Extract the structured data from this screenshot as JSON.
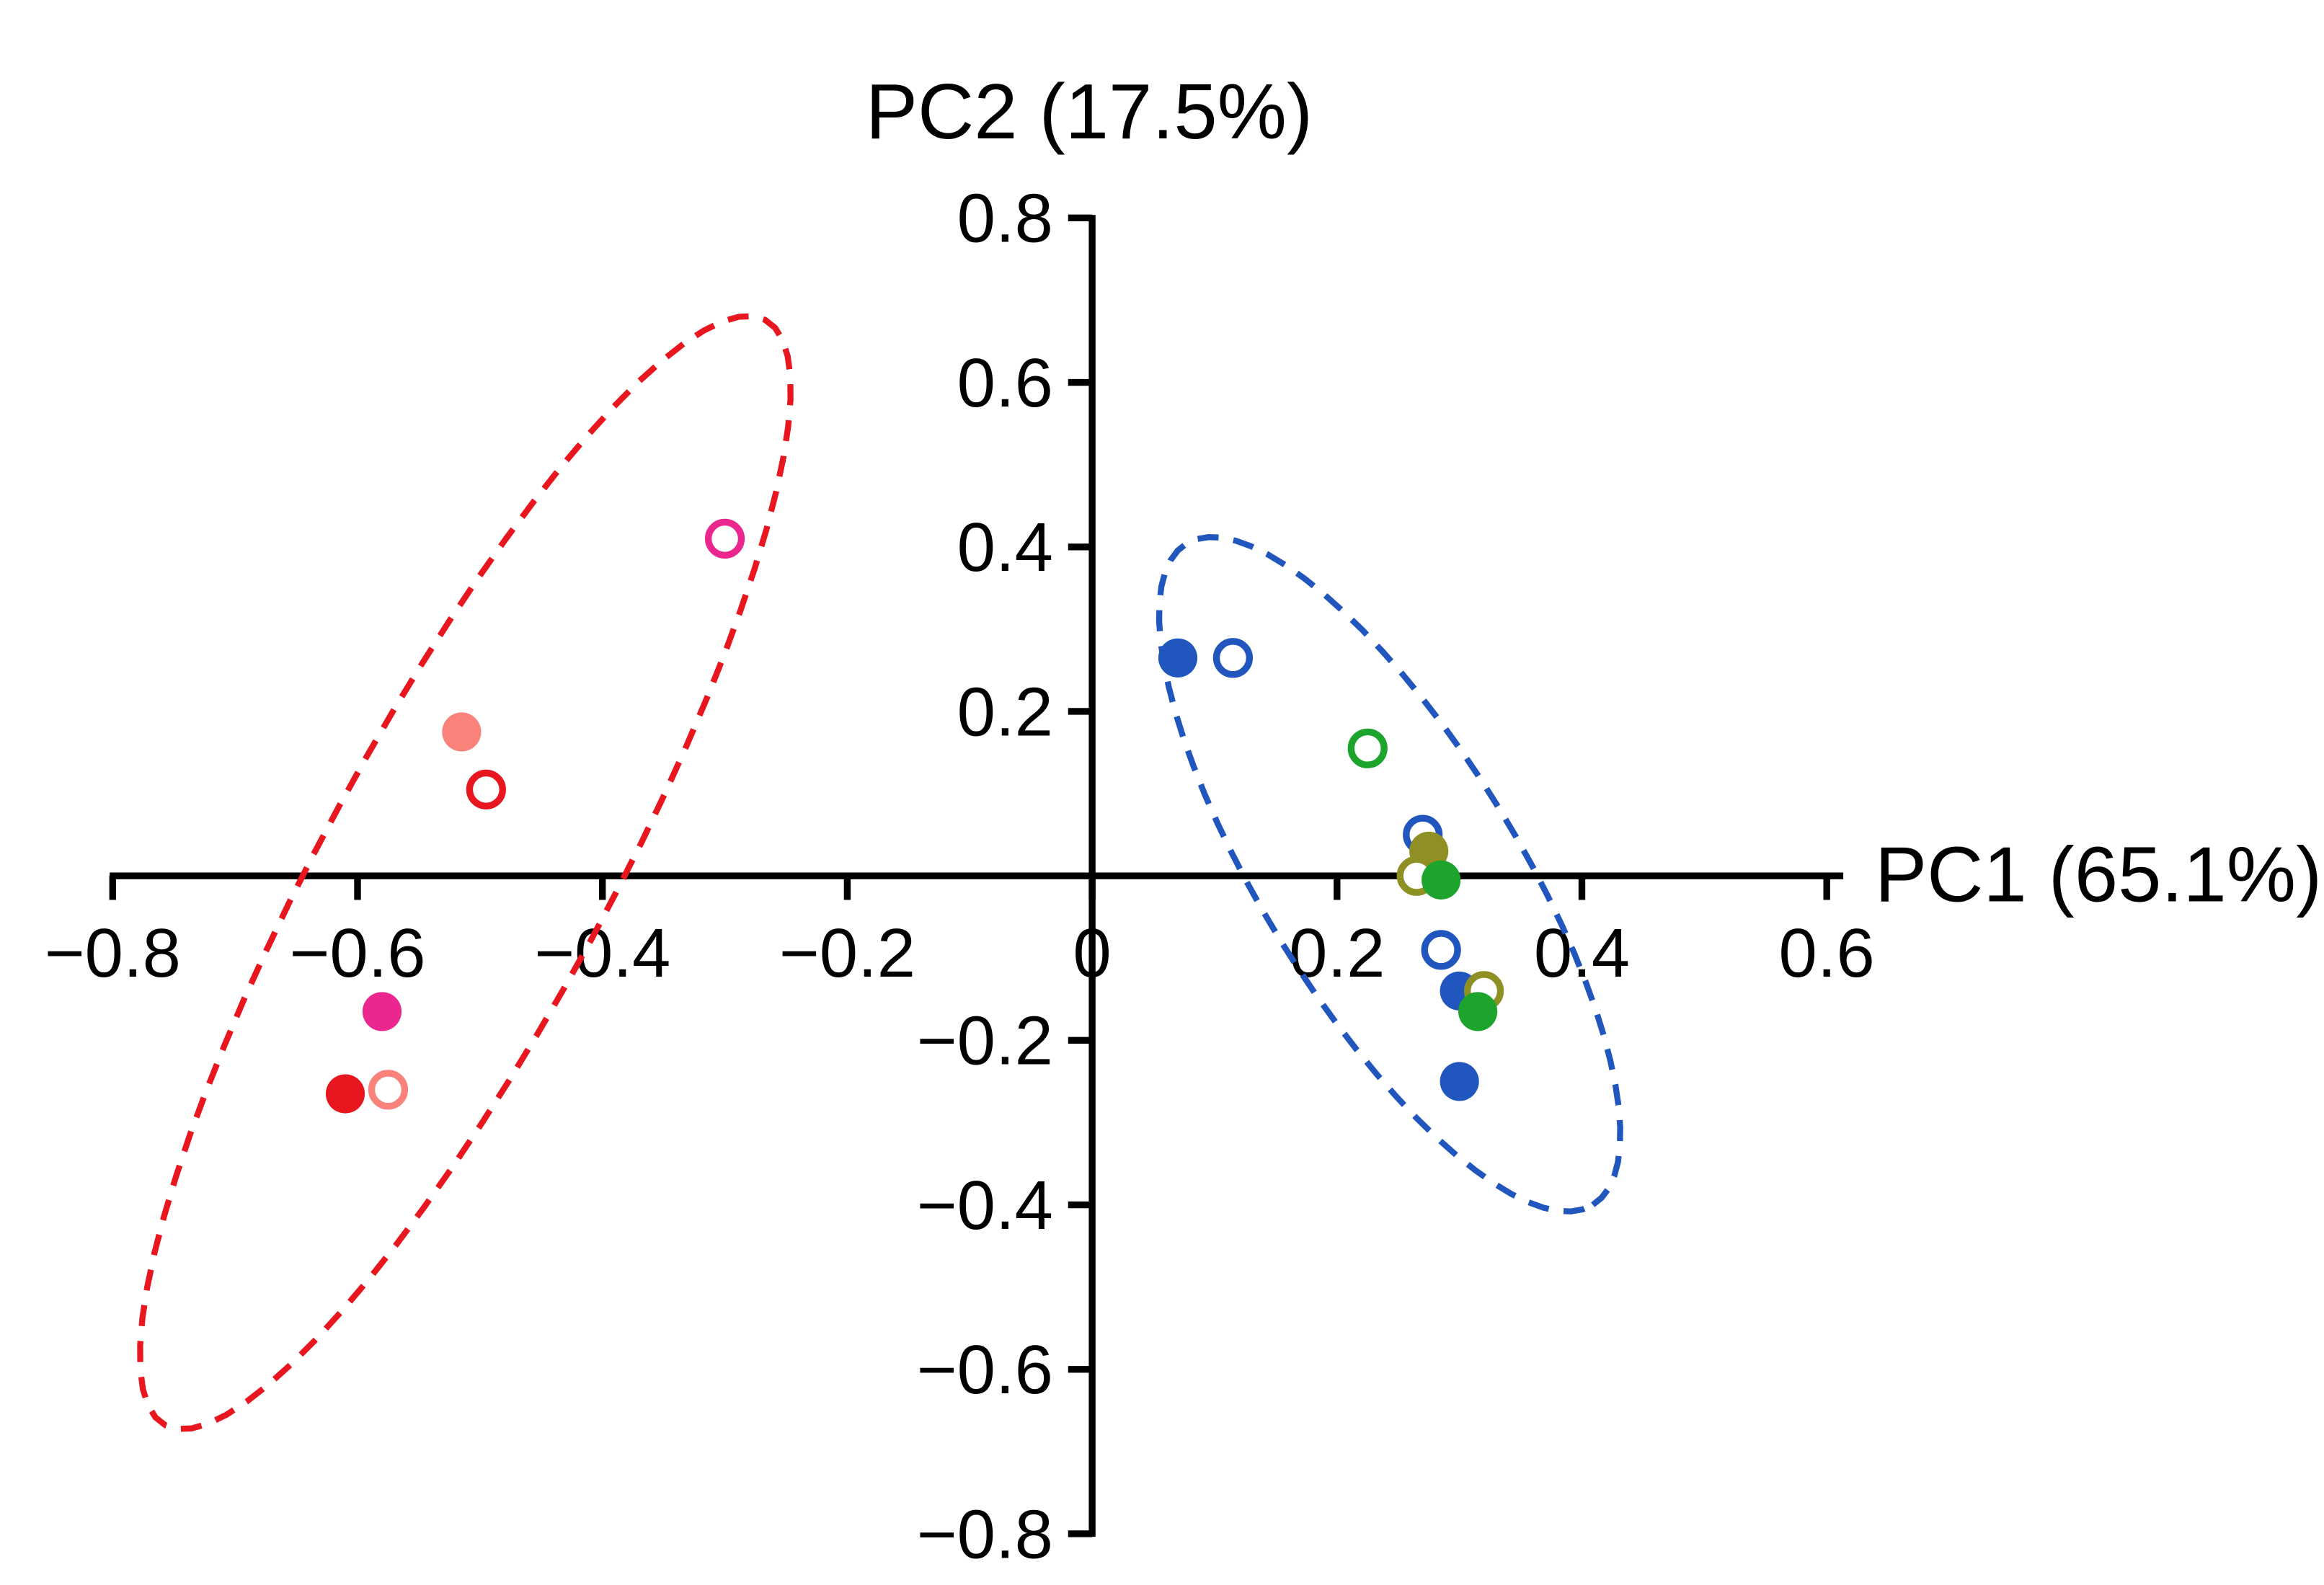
{
  "page": {
    "background": "#ffffff"
  },
  "chart_data": {
    "type": "scatter",
    "title": "",
    "xlabel": "PC1 (65.1%)",
    "ylabel": "PC2 (17.5%)",
    "xlim": [
      -0.8,
      0.6
    ],
    "ylim": [
      -0.8,
      0.8
    ],
    "grid": false,
    "legend": "none",
    "axis_color": "#000000",
    "x_ticks": [
      {
        "v": -0.8,
        "label": "−0.8"
      },
      {
        "v": -0.6,
        "label": "−0.6"
      },
      {
        "v": -0.4,
        "label": "−0.4"
      },
      {
        "v": -0.2,
        "label": "−0.2"
      },
      {
        "v": 0,
        "label": "0"
      },
      {
        "v": 0.2,
        "label": "0.2"
      },
      {
        "v": 0.4,
        "label": "0.4"
      },
      {
        "v": 0.6,
        "label": "0.6"
      }
    ],
    "y_ticks": [
      {
        "v": 0.8,
        "label": "0.8"
      },
      {
        "v": 0.6,
        "label": "0.6"
      },
      {
        "v": 0.4,
        "label": "0.4"
      },
      {
        "v": 0.2,
        "label": "0.2"
      },
      {
        "v": -0.2,
        "label": "−0.2"
      },
      {
        "v": -0.4,
        "label": "−0.4"
      },
      {
        "v": -0.6,
        "label": "−0.6"
      },
      {
        "v": -0.8,
        "label": "−0.8"
      }
    ],
    "series": [
      {
        "name": "salmon-filled",
        "color": "#F9827B",
        "filled": true,
        "points": [
          [
            -0.515,
            0.175
          ]
        ]
      },
      {
        "name": "salmon-open",
        "color": "#F9827B",
        "filled": false,
        "points": [
          [
            -0.575,
            -0.26
          ]
        ]
      },
      {
        "name": "red-filled",
        "color": "#E8161E",
        "filled": true,
        "points": [
          [
            -0.61,
            -0.265
          ]
        ]
      },
      {
        "name": "red-open",
        "color": "#E8161E",
        "filled": false,
        "points": [
          [
            -0.495,
            0.105
          ]
        ]
      },
      {
        "name": "pink-filled",
        "color": "#EC268F",
        "filled": true,
        "points": [
          [
            -0.58,
            -0.165
          ]
        ]
      },
      {
        "name": "pink-open",
        "color": "#EC268F",
        "filled": false,
        "points": [
          [
            -0.3,
            0.41
          ]
        ]
      },
      {
        "name": "blue-filled",
        "color": "#2156BE",
        "filled": true,
        "points": [
          [
            0.07,
            0.265
          ],
          [
            0.3,
            -0.14
          ],
          [
            0.3,
            -0.25
          ]
        ]
      },
      {
        "name": "blue-open",
        "color": "#2156BE",
        "filled": false,
        "points": [
          [
            0.115,
            0.265
          ],
          [
            0.27,
            0.05
          ],
          [
            0.285,
            -0.09
          ]
        ]
      },
      {
        "name": "olive-filled",
        "color": "#8E9023",
        "filled": true,
        "points": [
          [
            0.275,
            0.03
          ]
        ]
      },
      {
        "name": "olive-open",
        "color": "#8E9023",
        "filled": false,
        "points": [
          [
            0.265,
            0.0
          ],
          [
            0.32,
            -0.14
          ]
        ]
      },
      {
        "name": "green-filled",
        "color": "#1CA42C",
        "filled": true,
        "points": [
          [
            0.285,
            -0.005
          ],
          [
            0.315,
            -0.165
          ]
        ]
      },
      {
        "name": "green-open",
        "color": "#1CA42C",
        "filled": false,
        "points": [
          [
            0.225,
            0.155
          ]
        ]
      }
    ],
    "ellipses": [
      {
        "name": "red-cluster-ellipse",
        "color": "#E8161E",
        "center": [
          -0.512,
          0.004
        ],
        "major": [
          0.245,
          0.672
        ],
        "minor": [
          0.103,
          -0.081
        ]
      },
      {
        "name": "blue-cluster-ellipse",
        "color": "#2156BE",
        "center": [
          0.243,
          0.002
        ],
        "major": [
          0.166,
          -0.402
        ],
        "minor": [
          0.089,
          0.081
        ]
      }
    ]
  }
}
